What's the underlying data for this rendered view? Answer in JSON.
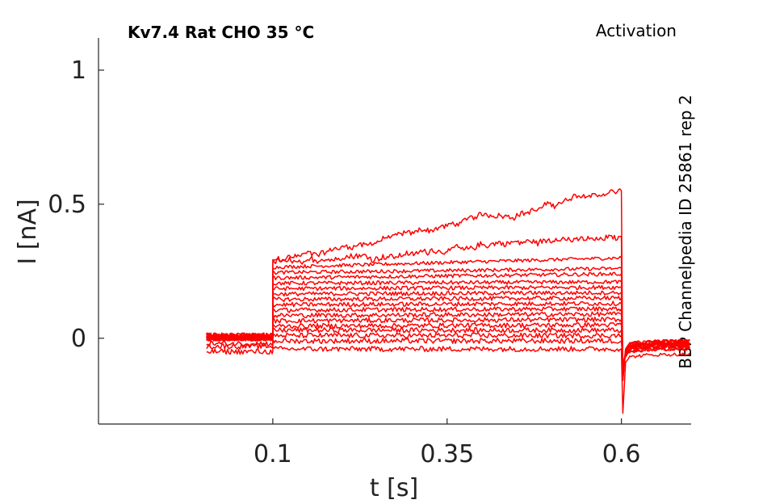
{
  "chart_data": {
    "type": "line",
    "title": "Kv7.4  Rat  CHO  35 °C",
    "protocol_label": "Activation",
    "side_label": "BBP Channelpedia ID 25861 rep 2",
    "xlabel": "t [s]",
    "ylabel": "I [nA]",
    "xlim": [
      -0.15,
      0.7
    ],
    "ylim": [
      -0.32,
      1.12
    ],
    "xticks": [
      0.1,
      0.35,
      0.6
    ],
    "xtick_labels": [
      "0.1",
      "0.35",
      "0.6"
    ],
    "yticks": [
      0,
      0.5,
      1
    ],
    "ytick_labels": [
      "0",
      "0.5",
      "1"
    ],
    "grid": false,
    "line_color": "#ff0000",
    "step": {
      "start": 0.1,
      "end": 0.6,
      "record_start": 0.005,
      "record_end": 0.7
    },
    "series": [
      {
        "values": {
          "pre": 0.0,
          "step_start": 0.29,
          "step_end": 0.55,
          "post": -0.01
        }
      },
      {
        "values": {
          "pre": 0.01,
          "step_start": 0.285,
          "step_end": 0.38,
          "post": -0.01
        }
      },
      {
        "values": {
          "pre": 0.0,
          "step_start": 0.265,
          "step_end": 0.3,
          "post": -0.02
        }
      },
      {
        "values": {
          "pre": 0.01,
          "step_start": 0.245,
          "step_end": 0.26,
          "post": -0.01
        }
      },
      {
        "values": {
          "pre": 0.0,
          "step_start": 0.225,
          "step_end": 0.24,
          "post": -0.02
        }
      },
      {
        "values": {
          "pre": 0.01,
          "step_start": 0.205,
          "step_end": 0.21,
          "post": -0.02
        }
      },
      {
        "values": {
          "pre": 0.0,
          "step_start": 0.185,
          "step_end": 0.19,
          "post": -0.02
        }
      },
      {
        "values": {
          "pre": 0.0,
          "step_start": 0.165,
          "step_end": 0.17,
          "post": -0.02
        }
      },
      {
        "values": {
          "pre": 0.01,
          "step_start": 0.145,
          "step_end": 0.15,
          "post": -0.02
        }
      },
      {
        "values": {
          "pre": 0.0,
          "step_start": 0.125,
          "step_end": 0.13,
          "post": -0.02
        }
      },
      {
        "values": {
          "pre": 0.0,
          "step_start": 0.105,
          "step_end": 0.11,
          "post": -0.02
        }
      },
      {
        "values": {
          "pre": 0.0,
          "step_start": 0.085,
          "step_end": 0.09,
          "post": -0.03
        }
      },
      {
        "values": {
          "pre": 0.0,
          "step_start": 0.065,
          "step_end": 0.07,
          "post": -0.03
        }
      },
      {
        "values": {
          "pre": 0.01,
          "step_start": 0.045,
          "step_end": 0.05,
          "post": -0.03
        }
      },
      {
        "values": {
          "pre": 0.0,
          "step_start": 0.03,
          "step_end": 0.03,
          "post": -0.03
        }
      },
      {
        "values": {
          "pre": -0.02,
          "step_start": 0.01,
          "step_end": 0.01,
          "post": -0.04
        }
      },
      {
        "values": {
          "pre": -0.03,
          "step_start": -0.01,
          "step_end": -0.01,
          "post": -0.04
        }
      },
      {
        "values": {
          "pre": -0.05,
          "step_start": -0.04,
          "step_end": -0.04,
          "post": -0.06
        }
      }
    ],
    "transient_min": -0.28
  }
}
